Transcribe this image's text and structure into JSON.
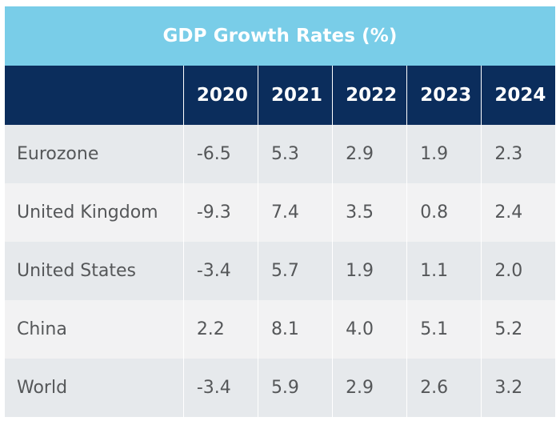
{
  "chart_data": {
    "type": "table",
    "title": "GDP Growth Rates (%)",
    "columns": [
      "2020",
      "2021",
      "2022",
      "2023",
      "2024"
    ],
    "rows": [
      {
        "label": "Eurozone",
        "values": [
          "-6.5",
          "5.3",
          "2.9",
          "1.9",
          "2.3"
        ]
      },
      {
        "label": "United Kingdom",
        "values": [
          "-9.3",
          "7.4",
          "3.5",
          "0.8",
          "2.4"
        ]
      },
      {
        "label": "United States",
        "values": [
          "-3.4",
          "5.7",
          "1.9",
          "1.1",
          "2.0"
        ]
      },
      {
        "label": "China",
        "values": [
          "2.2",
          "8.1",
          "4.0",
          "5.1",
          "5.2"
        ]
      },
      {
        "label": "World",
        "values": [
          "-3.4",
          "5.9",
          "2.9",
          "2.6",
          "3.2"
        ]
      }
    ]
  },
  "colors": {
    "title_background": "#79cde8",
    "header_background": "#0b2d5c",
    "row_odd": "#e6e9ec",
    "row_even": "#f2f2f3",
    "body_text": "#555759"
  }
}
